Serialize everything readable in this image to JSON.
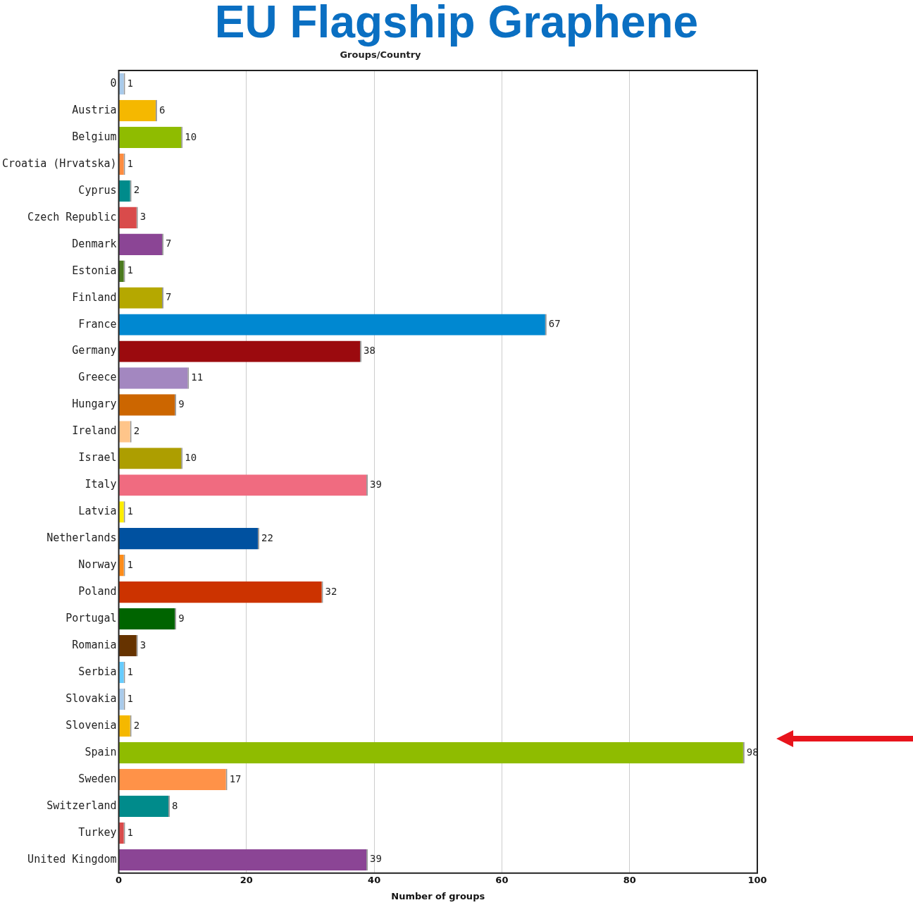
{
  "chart_data": {
    "type": "bar",
    "orientation": "horizontal",
    "title": "EU Flagship Graphene",
    "subtitle": "Groups/Country",
    "xlabel": "Number of groups",
    "categories": [
      "0",
      "Austria",
      "Belgium",
      "Croatia (Hrvatska)",
      "Cyprus",
      "Czech Republic",
      "Denmark",
      "Estonia",
      "Finland",
      "France",
      "Germany",
      "Greece",
      "Hungary",
      "Ireland",
      "Israel",
      "Italy",
      "Latvia",
      "Netherlands",
      "Norway",
      "Poland",
      "Portugal",
      "Romania",
      "Serbia",
      "Slovakia",
      "Slovenia",
      "Spain",
      "Sweden",
      "Switzerland",
      "Turkey",
      "United Kingdom"
    ],
    "values": [
      1,
      6,
      10,
      1,
      2,
      3,
      7,
      1,
      7,
      67,
      38,
      11,
      9,
      2,
      10,
      39,
      1,
      22,
      1,
      32,
      9,
      3,
      1,
      1,
      2,
      98,
      17,
      8,
      1,
      39
    ],
    "colors": [
      "#a9cbeb",
      "#f5b800",
      "#8fbc00",
      "#ff8c40",
      "#008b8b",
      "#d94b4b",
      "#8b4595",
      "#4b7a1e",
      "#b5a800",
      "#0088d1",
      "#9b0a0e",
      "#a387c0",
      "#cc6600",
      "#ffc58a",
      "#ad9e00",
      "#f06b80",
      "#ffee00",
      "#0051a0",
      "#ff8c1a",
      "#cc3300",
      "#006400",
      "#663300",
      "#66ccff",
      "#a9cbeb",
      "#f5b800",
      "#8fbc00",
      "#ff9248",
      "#008b8b",
      "#d94b4b",
      "#8b4595"
    ],
    "xlim": [
      0,
      100
    ],
    "xticks": [
      0,
      20,
      40,
      60,
      80,
      100
    ],
    "grid": "x",
    "data_labels": true,
    "legend": false
  }
}
